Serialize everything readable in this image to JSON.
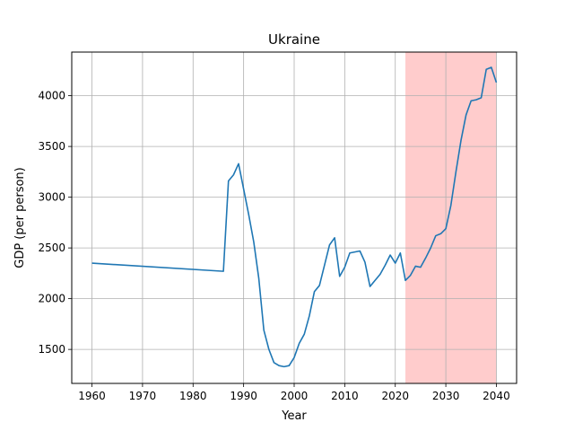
{
  "chart_data": {
    "type": "line",
    "title": "Ukraine",
    "xlabel": "Year",
    "ylabel": "GDP (per person)",
    "xlim": [
      1956,
      2044
    ],
    "ylim": [
      1165,
      4430
    ],
    "xticks": [
      1960,
      1970,
      1980,
      1990,
      2000,
      2010,
      2020,
      2030,
      2040
    ],
    "yticks": [
      1500,
      2000,
      2500,
      3000,
      3500,
      4000
    ],
    "grid": true,
    "shaded_region": {
      "x_start": 2022,
      "x_end": 2040,
      "color": "#ffcccc"
    },
    "series": [
      {
        "color": "#1f77b4",
        "points": [
          [
            1960,
            2350
          ],
          [
            1986,
            2270
          ],
          [
            1987,
            3160
          ],
          [
            1988,
            3220
          ],
          [
            1989,
            3330
          ],
          [
            1990,
            3080
          ],
          [
            1991,
            2830
          ],
          [
            1992,
            2560
          ],
          [
            1993,
            2200
          ],
          [
            1994,
            1690
          ],
          [
            1995,
            1500
          ],
          [
            1996,
            1370
          ],
          [
            1997,
            1340
          ],
          [
            1998,
            1330
          ],
          [
            1999,
            1340
          ],
          [
            2000,
            1420
          ],
          [
            2001,
            1560
          ],
          [
            2002,
            1650
          ],
          [
            2003,
            1830
          ],
          [
            2004,
            2070
          ],
          [
            2005,
            2130
          ],
          [
            2006,
            2330
          ],
          [
            2007,
            2530
          ],
          [
            2008,
            2600
          ],
          [
            2009,
            2220
          ],
          [
            2010,
            2310
          ],
          [
            2011,
            2450
          ],
          [
            2012,
            2460
          ],
          [
            2013,
            2470
          ],
          [
            2014,
            2360
          ],
          [
            2015,
            2120
          ],
          [
            2016,
            2180
          ],
          [
            2017,
            2240
          ],
          [
            2018,
            2330
          ],
          [
            2019,
            2430
          ],
          [
            2020,
            2350
          ],
          [
            2021,
            2450
          ],
          [
            2022,
            2180
          ],
          [
            2023,
            2230
          ],
          [
            2024,
            2320
          ],
          [
            2025,
            2310
          ],
          [
            2026,
            2400
          ],
          [
            2027,
            2500
          ],
          [
            2028,
            2620
          ],
          [
            2029,
            2640
          ],
          [
            2030,
            2690
          ],
          [
            2031,
            2920
          ],
          [
            2032,
            3250
          ],
          [
            2033,
            3560
          ],
          [
            2034,
            3810
          ],
          [
            2035,
            3950
          ],
          [
            2036,
            3960
          ],
          [
            2037,
            3980
          ],
          [
            2038,
            4260
          ],
          [
            2039,
            4280
          ],
          [
            2040,
            4130
          ]
        ]
      }
    ]
  }
}
